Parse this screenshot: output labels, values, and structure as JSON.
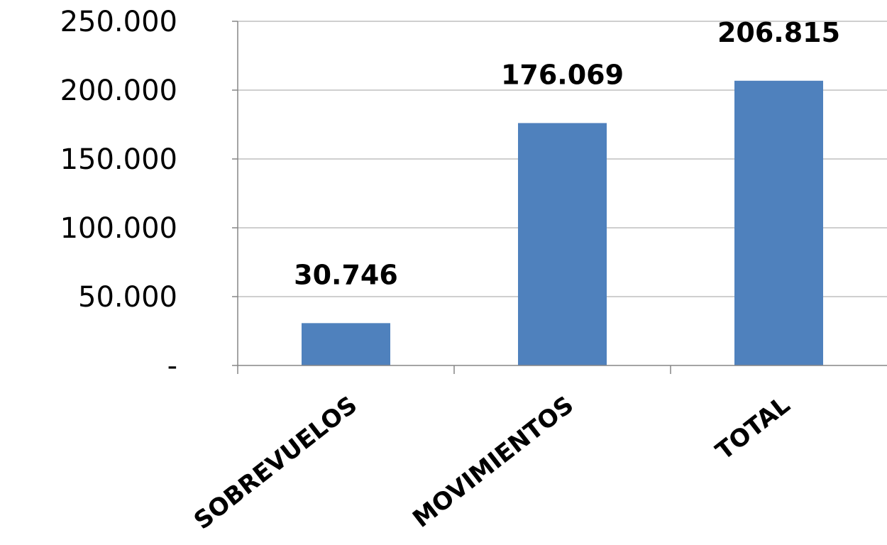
{
  "chart_data": {
    "type": "bar",
    "categories": [
      "SOBREVUELOS",
      "MOVIMIENTOS",
      "TOTAL"
    ],
    "values": [
      30746,
      176069,
      206815
    ],
    "data_labels": [
      "30.746",
      "176.069",
      "206.815"
    ],
    "ylim": [
      0,
      250000
    ],
    "yticks": [
      0,
      50000,
      100000,
      150000,
      200000,
      250000
    ],
    "ytick_labels": [
      "-",
      "50.000",
      "100.000",
      "150.000",
      "200.000",
      "250.000"
    ],
    "grid": true,
    "legend": "none",
    "bar_color": "#4F81BD",
    "grid_color": "#BFBFBF",
    "axis_color": "#868686"
  }
}
